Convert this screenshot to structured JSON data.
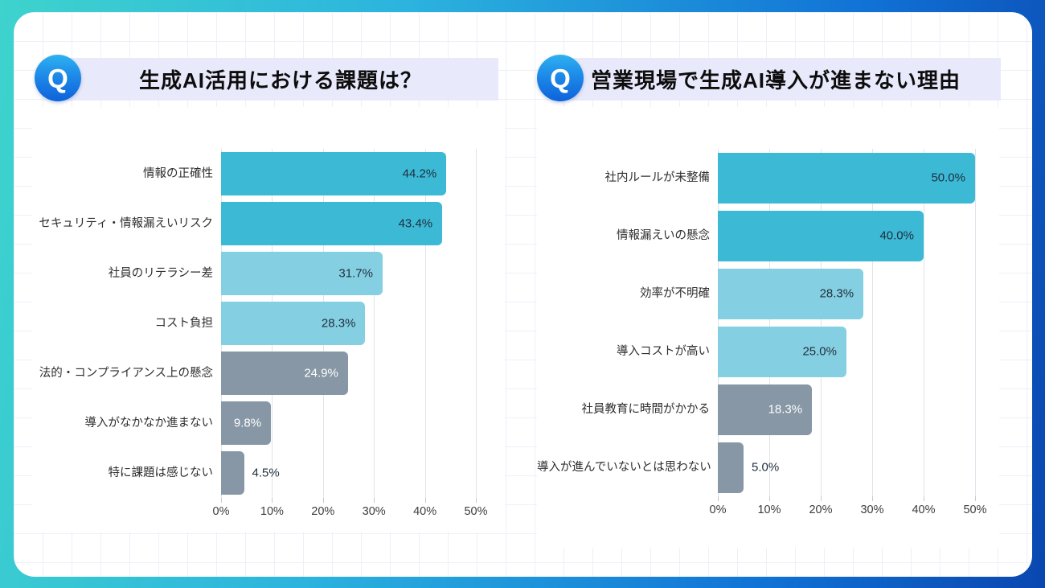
{
  "page": {
    "frame_gradient": [
      "#3ed3cd",
      "#2cb4de",
      "#0a47b0"
    ],
    "panel_bg": "#ffffff",
    "grid_line_color": "#edf0f8",
    "title_bar_bg": "#e8e9fb"
  },
  "q_badge": {
    "label": "Q",
    "bg_top": "#2fb1f0",
    "bg_bottom": "#0e62da",
    "text_color": "#ffffff"
  },
  "palette": {
    "cyan": "#3cb9d5",
    "light_blue": "#85cfe2",
    "gray": "#8797a5",
    "value_dark": "#1f2e3d",
    "value_light": "#ffffff",
    "chart_gridline": "#e0e3e8"
  },
  "chart_data": [
    {
      "type": "bar",
      "orientation": "horizontal",
      "title": "生成AI活用における課題は？",
      "xlabel": "",
      "ylabel": "",
      "xlim": [
        0,
        50
      ],
      "x_ticks": [
        "0%",
        "10%",
        "20%",
        "30%",
        "40%",
        "50%"
      ],
      "grid": true,
      "legend": "none",
      "bars": [
        {
          "label": "情報の正確性",
          "value": 44.2,
          "display": "44.2%",
          "color_key": "cyan",
          "value_inside": true,
          "value_color": "dark"
        },
        {
          "label": "セキュリティ・情報漏えいリスク",
          "value": 43.4,
          "display": "43.4%",
          "color_key": "cyan",
          "value_inside": true,
          "value_color": "dark"
        },
        {
          "label": "社員のリテラシー差",
          "value": 31.7,
          "display": "31.7%",
          "color_key": "light_blue",
          "value_inside": true,
          "value_color": "dark"
        },
        {
          "label": "コスト負担",
          "value": 28.3,
          "display": "28.3%",
          "color_key": "light_blue",
          "value_inside": true,
          "value_color": "dark"
        },
        {
          "label": "法的・コンプライアンス上の懸念",
          "value": 24.9,
          "display": "24.9%",
          "color_key": "gray",
          "value_inside": true,
          "value_color": "light"
        },
        {
          "label": "導入がなかなか進まない",
          "value": 9.8,
          "display": "9.8%",
          "color_key": "gray",
          "value_inside": true,
          "value_color": "light"
        },
        {
          "label": "特に課題は感じない",
          "value": 4.5,
          "display": "4.5%",
          "color_key": "gray",
          "value_inside": false,
          "value_color": "dark"
        }
      ]
    },
    {
      "type": "bar",
      "orientation": "horizontal",
      "title": "営業現場で生成AI導入が進まない理由",
      "xlabel": "",
      "ylabel": "",
      "xlim": [
        0,
        50
      ],
      "x_ticks": [
        "0%",
        "10%",
        "20%",
        "30%",
        "40%",
        "50%"
      ],
      "grid": true,
      "legend": "none",
      "bars": [
        {
          "label": "社内ルールが未整備",
          "value": 50.0,
          "display": "50.0%",
          "color_key": "cyan",
          "value_inside": true,
          "value_color": "dark"
        },
        {
          "label": "情報漏えいの懸念",
          "value": 40.0,
          "display": "40.0%",
          "color_key": "cyan",
          "value_inside": true,
          "value_color": "dark"
        },
        {
          "label": "効率が不明確",
          "value": 28.3,
          "display": "28.3%",
          "color_key": "light_blue",
          "value_inside": true,
          "value_color": "dark"
        },
        {
          "label": "導入コストが高い",
          "value": 25.0,
          "display": "25.0%",
          "color_key": "light_blue",
          "value_inside": true,
          "value_color": "dark"
        },
        {
          "label": "社員教育に時間がかかる",
          "value": 18.3,
          "display": "18.3%",
          "color_key": "gray",
          "value_inside": true,
          "value_color": "light"
        },
        {
          "label": "導入が進んでいないとは思わない",
          "value": 5.0,
          "display": "5.0%",
          "color_key": "gray",
          "value_inside": false,
          "value_color": "dark"
        }
      ]
    }
  ]
}
